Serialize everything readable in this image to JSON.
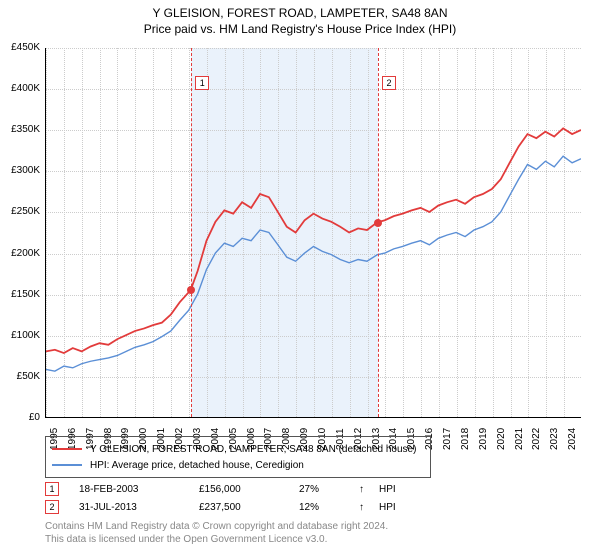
{
  "title": "Y GLEISION, FOREST ROAD, LAMPETER, SA48 8AN",
  "subtitle": "Price paid vs. HM Land Registry's House Price Index (HPI)",
  "chart": {
    "type": "line",
    "xlim": [
      1995,
      2025
    ],
    "ylim": [
      0,
      450000
    ],
    "ytick_step": 50000,
    "yticks": [
      "£0",
      "£50K",
      "£100K",
      "£150K",
      "£200K",
      "£250K",
      "£300K",
      "£350K",
      "£400K",
      "£450K"
    ],
    "xticks": [
      "1995",
      "1996",
      "1997",
      "1998",
      "1999",
      "2000",
      "2001",
      "2002",
      "2003",
      "2004",
      "2005",
      "2006",
      "2007",
      "2008",
      "2009",
      "2010",
      "2011",
      "2012",
      "2013",
      "2014",
      "2015",
      "2016",
      "2017",
      "2018",
      "2019",
      "2020",
      "2021",
      "2022",
      "2023",
      "2024"
    ],
    "grid_color": "#cccccc",
    "background_color": "#ffffff",
    "shade_color": "#eaf2fb",
    "shade_range": [
      2003.13,
      2013.58
    ],
    "series": [
      {
        "name": "property",
        "label": "Y GLEISION, FOREST ROAD, LAMPETER, SA48 8AN (detached house)",
        "color": "#e23b3b",
        "line_width": 1.8,
        "data": [
          [
            1995,
            80000
          ],
          [
            1995.5,
            82000
          ],
          [
            1996,
            78000
          ],
          [
            1996.5,
            84000
          ],
          [
            1997,
            80000
          ],
          [
            1997.5,
            86000
          ],
          [
            1998,
            90000
          ],
          [
            1998.5,
            88000
          ],
          [
            1999,
            95000
          ],
          [
            1999.5,
            100000
          ],
          [
            2000,
            105000
          ],
          [
            2000.5,
            108000
          ],
          [
            2001,
            112000
          ],
          [
            2001.5,
            115000
          ],
          [
            2002,
            125000
          ],
          [
            2002.5,
            140000
          ],
          [
            2003,
            152000
          ],
          [
            2003.13,
            156000
          ],
          [
            2003.5,
            178000
          ],
          [
            2004,
            215000
          ],
          [
            2004.5,
            238000
          ],
          [
            2005,
            252000
          ],
          [
            2005.5,
            248000
          ],
          [
            2006,
            262000
          ],
          [
            2006.5,
            255000
          ],
          [
            2007,
            272000
          ],
          [
            2007.5,
            268000
          ],
          [
            2008,
            250000
          ],
          [
            2008.5,
            232000
          ],
          [
            2009,
            225000
          ],
          [
            2009.5,
            240000
          ],
          [
            2010,
            248000
          ],
          [
            2010.5,
            242000
          ],
          [
            2011,
            238000
          ],
          [
            2011.5,
            232000
          ],
          [
            2012,
            225000
          ],
          [
            2012.5,
            230000
          ],
          [
            2013,
            228000
          ],
          [
            2013.58,
            237500
          ],
          [
            2014,
            240000
          ],
          [
            2014.5,
            245000
          ],
          [
            2015,
            248000
          ],
          [
            2015.5,
            252000
          ],
          [
            2016,
            255000
          ],
          [
            2016.5,
            250000
          ],
          [
            2017,
            258000
          ],
          [
            2017.5,
            262000
          ],
          [
            2018,
            265000
          ],
          [
            2018.5,
            260000
          ],
          [
            2019,
            268000
          ],
          [
            2019.5,
            272000
          ],
          [
            2020,
            278000
          ],
          [
            2020.5,
            290000
          ],
          [
            2021,
            310000
          ],
          [
            2021.5,
            330000
          ],
          [
            2022,
            345000
          ],
          [
            2022.5,
            340000
          ],
          [
            2023,
            348000
          ],
          [
            2023.5,
            342000
          ],
          [
            2024,
            352000
          ],
          [
            2024.5,
            345000
          ],
          [
            2025,
            350000
          ]
        ]
      },
      {
        "name": "hpi",
        "label": "HPI: Average price, detached house, Ceredigion",
        "color": "#5b8fd6",
        "line_width": 1.4,
        "data": [
          [
            1995,
            58000
          ],
          [
            1995.5,
            56000
          ],
          [
            1996,
            62000
          ],
          [
            1996.5,
            60000
          ],
          [
            1997,
            65000
          ],
          [
            1997.5,
            68000
          ],
          [
            1998,
            70000
          ],
          [
            1998.5,
            72000
          ],
          [
            1999,
            75000
          ],
          [
            1999.5,
            80000
          ],
          [
            2000,
            85000
          ],
          [
            2000.5,
            88000
          ],
          [
            2001,
            92000
          ],
          [
            2001.5,
            98000
          ],
          [
            2002,
            105000
          ],
          [
            2002.5,
            118000
          ],
          [
            2003,
            130000
          ],
          [
            2003.5,
            150000
          ],
          [
            2004,
            180000
          ],
          [
            2004.5,
            200000
          ],
          [
            2005,
            212000
          ],
          [
            2005.5,
            208000
          ],
          [
            2006,
            218000
          ],
          [
            2006.5,
            215000
          ],
          [
            2007,
            228000
          ],
          [
            2007.5,
            225000
          ],
          [
            2008,
            210000
          ],
          [
            2008.5,
            195000
          ],
          [
            2009,
            190000
          ],
          [
            2009.5,
            200000
          ],
          [
            2010,
            208000
          ],
          [
            2010.5,
            202000
          ],
          [
            2011,
            198000
          ],
          [
            2011.5,
            192000
          ],
          [
            2012,
            188000
          ],
          [
            2012.5,
            192000
          ],
          [
            2013,
            190000
          ],
          [
            2013.58,
            198000
          ],
          [
            2014,
            200000
          ],
          [
            2014.5,
            205000
          ],
          [
            2015,
            208000
          ],
          [
            2015.5,
            212000
          ],
          [
            2016,
            215000
          ],
          [
            2016.5,
            210000
          ],
          [
            2017,
            218000
          ],
          [
            2017.5,
            222000
          ],
          [
            2018,
            225000
          ],
          [
            2018.5,
            220000
          ],
          [
            2019,
            228000
          ],
          [
            2019.5,
            232000
          ],
          [
            2020,
            238000
          ],
          [
            2020.5,
            250000
          ],
          [
            2021,
            270000
          ],
          [
            2021.5,
            290000
          ],
          [
            2022,
            308000
          ],
          [
            2022.5,
            302000
          ],
          [
            2023,
            312000
          ],
          [
            2023.5,
            305000
          ],
          [
            2024,
            318000
          ],
          [
            2024.5,
            310000
          ],
          [
            2025,
            315000
          ]
        ]
      }
    ],
    "markers": [
      {
        "n": "1",
        "x": 2003.13,
        "y": 156000
      },
      {
        "n": "2",
        "x": 2013.58,
        "y": 237500
      }
    ],
    "marker_line_color": "#e23b3b",
    "marker_dot_color": "#e23b3b"
  },
  "transactions": [
    {
      "n": "1",
      "date": "18-FEB-2003",
      "price": "£156,000",
      "pct": "27%",
      "arrow": "↑",
      "vs": "HPI"
    },
    {
      "n": "2",
      "date": "31-JUL-2013",
      "price": "£237,500",
      "pct": "12%",
      "arrow": "↑",
      "vs": "HPI"
    }
  ],
  "footer": {
    "line1": "Contains HM Land Registry data © Crown copyright and database right 2024.",
    "line2": "This data is licensed under the Open Government Licence v3.0."
  }
}
